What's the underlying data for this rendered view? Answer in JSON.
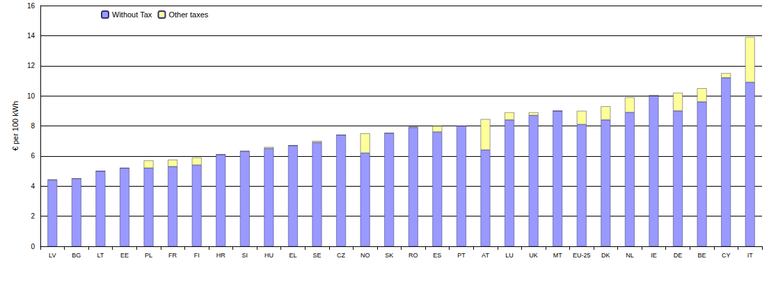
{
  "chart_data": {
    "type": "bar",
    "stacked": true,
    "grid": true,
    "legend": "top-left",
    "y_label": "€ per 100 kWh",
    "categories": [
      "LV",
      "BG",
      "LT",
      "EE",
      "PL",
      "FR",
      "FI",
      "HR",
      "SI",
      "HU",
      "EL",
      "SE",
      "CZ",
      "NO",
      "SK",
      "RO",
      "ES",
      "PT",
      "AT",
      "LU",
      "UK",
      "MT",
      "EU-25",
      "DK",
      "NL",
      "IE",
      "DE",
      "BE",
      "CY",
      "IT"
    ],
    "series": [
      {
        "name": "Without Tax",
        "color": "#9999ff",
        "values": [
          4.4,
          4.5,
          5.0,
          5.2,
          5.2,
          5.3,
          5.4,
          6.1,
          6.3,
          6.5,
          6.7,
          6.9,
          7.4,
          6.2,
          7.5,
          7.9,
          7.6,
          8.0,
          6.4,
          8.4,
          8.7,
          9.0,
          8.1,
          8.4,
          8.9,
          10.0,
          9.0,
          9.6,
          11.2,
          10.9
        ]
      },
      {
        "name": "Other taxes",
        "color": "#ffff99",
        "values": [
          0.05,
          0,
          0,
          0,
          0.5,
          0.45,
          0.5,
          0,
          0.05,
          0.1,
          0,
          0.1,
          0,
          1.3,
          0.05,
          0.05,
          0.4,
          0,
          2.05,
          0.5,
          0.2,
          0,
          0.9,
          0.9,
          1.0,
          0.05,
          1.2,
          0.9,
          0.3,
          3.0
        ]
      }
    ],
    "ylim": [
      0,
      16
    ],
    "yticks": [
      0,
      2,
      4,
      6,
      8,
      10,
      12,
      14,
      16
    ]
  }
}
